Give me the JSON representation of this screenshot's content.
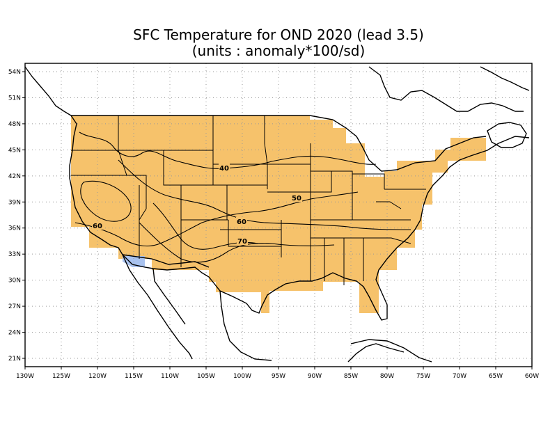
{
  "title": {
    "line1": "SFC Temperature for OND 2020 (lead 3.5)",
    "line2": "(units : anomaly*100/sd)"
  },
  "lon_ticks": [
    "130W",
    "125W",
    "120W",
    "115W",
    "110W",
    "105W",
    "100W",
    "95W",
    "90W",
    "85W",
    "80W",
    "75W",
    "70W",
    "65W",
    "60W"
  ],
  "lat_ticks": [
    "54N",
    "51N",
    "48N",
    "45N",
    "42N",
    "39N",
    "36N",
    "33N",
    "30N",
    "27N",
    "24N",
    "21N"
  ],
  "contour_labels": [
    "40",
    "50",
    "60",
    "70",
    "60"
  ],
  "colors": {
    "positive_fill": "#f6c26b",
    "negative_fill": "#a9c3f0",
    "lines": "#000000",
    "grid": "#999999"
  }
}
